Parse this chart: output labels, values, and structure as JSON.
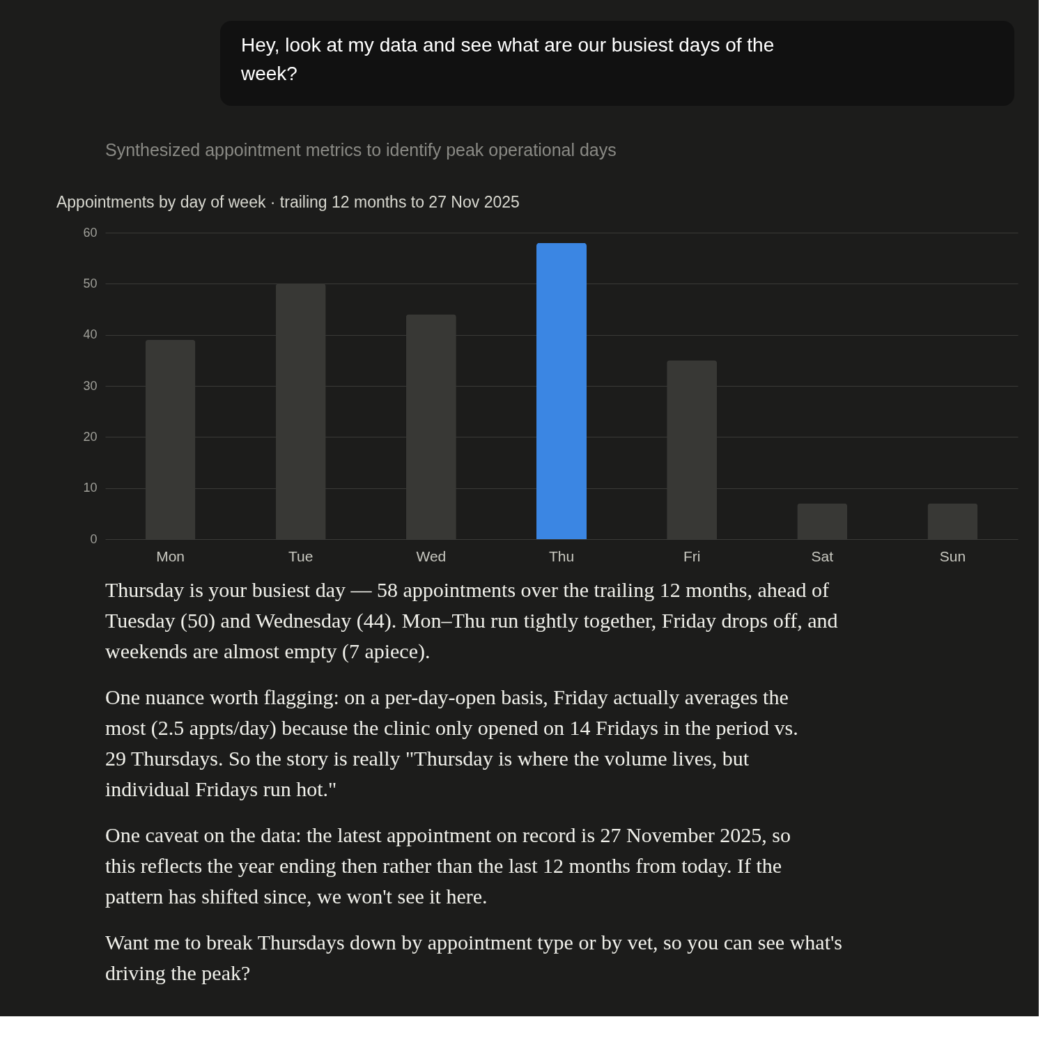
{
  "chart_data": {
    "type": "bar",
    "title": "Appointments by day of week · trailing 12 months to 27 Nov 2025",
    "subtitle": "Synthesized appointment metrics to identify peak operational days",
    "categories": [
      "Mon",
      "Tue",
      "Wed",
      "Thu",
      "Fri",
      "Sat",
      "Sun"
    ],
    "values": [
      39,
      50,
      44,
      58,
      35,
      7,
      7
    ],
    "colors": [
      "#383835",
      "#383835",
      "#383835",
      "#3b86e3",
      "#383835",
      "#383835",
      "#383835"
    ],
    "ylim": [
      0,
      60
    ],
    "yticks": [
      0,
      10,
      20,
      30,
      40,
      50,
      60
    ],
    "grid": "y",
    "legend": false,
    "annotations": [
      "Hey, look at my data and see what are our busiest days of the week?",
      "Thursday is your busiest day — 58 appointments over the trailing 12 months, ahead of Tuesday (50) and Wednesday (44). Mon–Thu run tightly together, Friday drops off, and weekends are almost empty (7 apiece).",
      "One nuance worth flagging: on a per-day-open basis, Friday actually averages the most (2.5 appts/day) because the clinic only opened on 14 Fridays in the period vs. 29 Thursdays. So the story is really \"Thursday is where the volume lives, but individual Fridays run hot.\"",
      "One caveat on the data: the latest appointment on record is 27 November 2025, so this reflects the year ending then rather than the last 12 months from today. If the pattern has shifted since, we won't see it here.",
      "Want me to break Thursdays down by appointment type or by vet, so you can see what's driving the peak?"
    ]
  }
}
